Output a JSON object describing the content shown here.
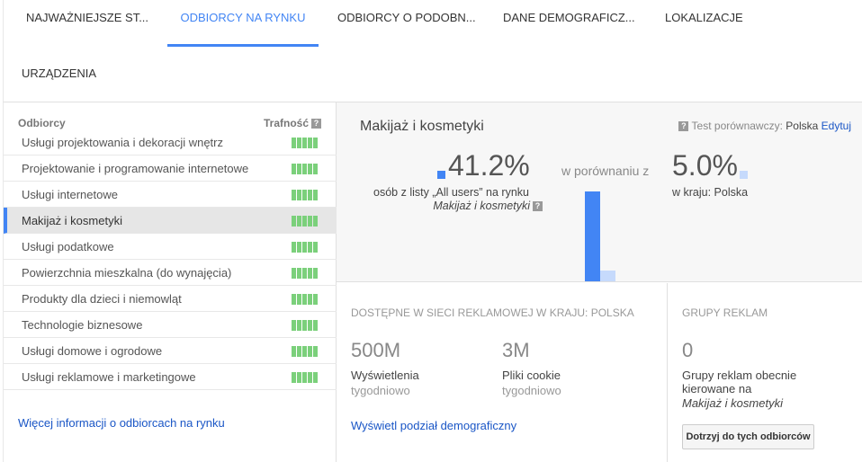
{
  "tabs": [
    "NAJWAŻNIEJSZE ST...",
    "ODBIORCY NA RYNKU",
    "ODBIORCY O PODOBN...",
    "DANE DEMOGRAFICZ...",
    "LOKALIZACJE",
    "URZĄDZENIA"
  ],
  "active_tab": 1,
  "audience_list": {
    "header_audience": "Odbiorcy",
    "header_relevance": "Trafność",
    "help_icon": "?",
    "items": [
      {
        "label": "Usługi projektowania i dekoracji wnętrz",
        "relevance": 5
      },
      {
        "label": "Projektowanie i programowanie internetowe",
        "relevance": 5
      },
      {
        "label": "Usługi internetowe",
        "relevance": 5
      },
      {
        "label": "Makijaż i kosmetyki",
        "relevance": 5,
        "selected": true
      },
      {
        "label": "Usługi podatkowe",
        "relevance": 5
      },
      {
        "label": "Powierzchnia mieszkalna (do wynajęcia)",
        "relevance": 5
      },
      {
        "label": "Produkty dla dzieci i niemowląt",
        "relevance": 5
      },
      {
        "label": "Technologie biznesowe",
        "relevance": 5
      },
      {
        "label": "Usługi domowe i ogrodowe",
        "relevance": 5
      },
      {
        "label": "Usługi reklamowe i marketingowe",
        "relevance": 5
      }
    ],
    "more_link": "Więcej informacji o odbiorcach na rynku"
  },
  "detail": {
    "title": "Makijaż i kosmetyki",
    "benchmark_label": "Test porównawczy:",
    "benchmark_value": "Polska",
    "edit_link": "Edytuj",
    "pct_audience": "41.2%",
    "pct_audience_value": 41.2,
    "audience_desc": "osób z listy „All users” na rynku",
    "audience_name": "Makijaż i kosmetyki",
    "compare_text": "w porównaniu z",
    "pct_country": "5.0%",
    "pct_country_value": 5.0,
    "country_desc": "w kraju: Polska",
    "colors": {
      "audience": "#4285f4",
      "country": "#c6dafc"
    }
  },
  "reach": {
    "caption": "Dostępne w sieci reklamowej w kraju: Polska",
    "impressions": "500M",
    "impressions_label": "Wyświetlenia",
    "impressions_period": "tygodniowo",
    "cookies": "3M",
    "cookies_label": "Pliki cookie",
    "cookies_period": "tygodniowo",
    "demo_link": "Wyświetl podział demograficzny"
  },
  "adgroups": {
    "caption": "Grupy reklam",
    "count": "0",
    "desc": "Grupy reklam obecnie kierowane na",
    "audience": "Makijaż i kosmetyki",
    "button": "Dotrzyj do tych odbiorców"
  }
}
